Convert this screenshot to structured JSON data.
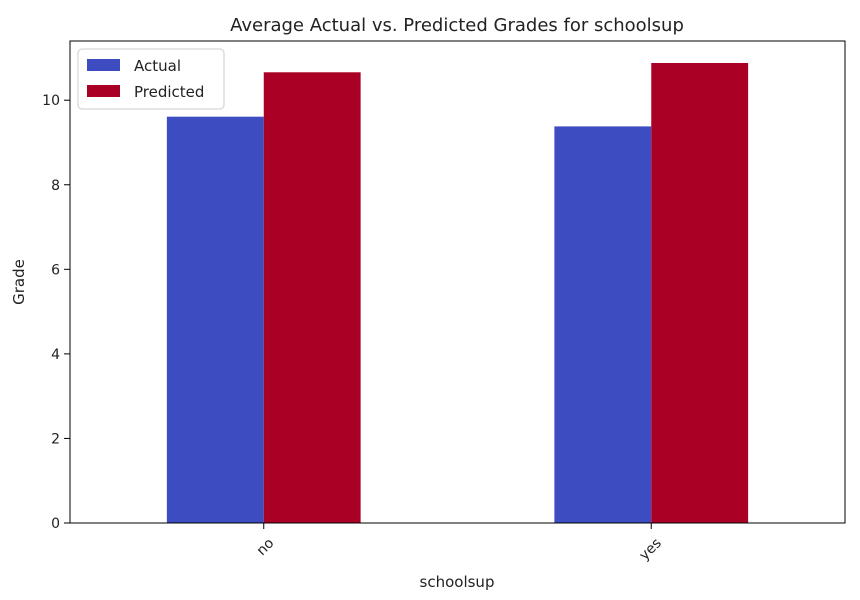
{
  "chart_data": {
    "type": "bar",
    "title": "Average Actual vs. Predicted Grades for schoolsup",
    "xlabel": "schoolsup",
    "ylabel": "Grade",
    "categories": [
      "no",
      "yes"
    ],
    "series": [
      {
        "name": "Actual",
        "values": [
          9.61,
          9.38
        ],
        "color": "#3d4dc1"
      },
      {
        "name": "Predicted",
        "values": [
          10.66,
          10.88
        ],
        "color": "#ab0025"
      }
    ],
    "ylim": [
      0,
      11.4
    ],
    "yticks": [
      0,
      2,
      4,
      6,
      8,
      10
    ],
    "grid": false,
    "legend_position": "top-left",
    "xtick_rotation": 45
  }
}
